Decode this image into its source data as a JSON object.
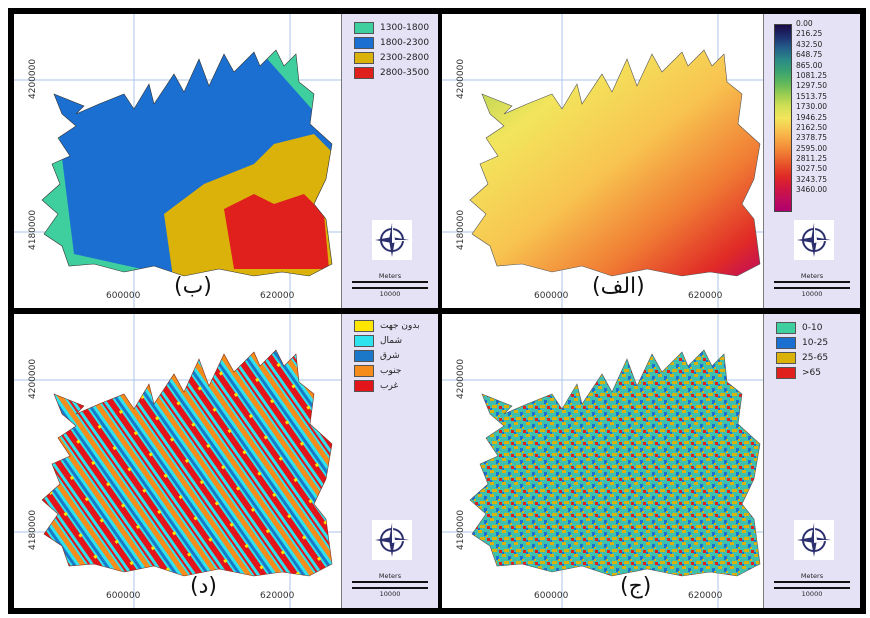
{
  "panels": {
    "alef": {
      "label": "(الف)",
      "ramp_labels": [
        "0.00",
        "216.25",
        "432.50",
        "648.75",
        "865.00",
        "1081.25",
        "1297.50",
        "1513.75",
        "1730.00",
        "1946.25",
        "2162.50",
        "2378.75",
        "2595.00",
        "2811.25",
        "3027.50",
        "3243.75",
        "3460.00"
      ],
      "ramp_colors": [
        "#1a0a46",
        "#1d2f70",
        "#245f8a",
        "#2a8a86",
        "#39a26f",
        "#60b85b",
        "#9ccd52",
        "#d2df55",
        "#f2e55c",
        "#f8c450",
        "#f6a040",
        "#f07c34",
        "#e8522a",
        "#e02a26",
        "#d11640",
        "#c00c5c",
        "#b0006e"
      ],
      "x_ticks": [
        "600000",
        "620000"
      ],
      "y_ticks": [
        "4200000",
        "4180000"
      ],
      "scale_title": "Meters",
      "scale_value": "10000"
    },
    "be": {
      "label": "(ب)",
      "legend": [
        {
          "label": "1300-1800",
          "color": "#3fcf9e"
        },
        {
          "label": "1800-2300",
          "color": "#1b6fd1"
        },
        {
          "label": "2300-2800",
          "color": "#dbb20a"
        },
        {
          "label": "2800-3500",
          "color": "#e0201c"
        }
      ],
      "x_ticks": [
        "600000",
        "620000"
      ],
      "y_ticks": [
        "4200000",
        "4180000"
      ],
      "scale_title": "Meters",
      "scale_value": "10000"
    },
    "jim": {
      "label": "(ج)",
      "legend": [
        {
          "label": "0-10",
          "color": "#3fcf9e"
        },
        {
          "label": "10-25",
          "color": "#1b6fd1"
        },
        {
          "label": "25-65",
          "color": "#dbb20a"
        },
        {
          "label": ">65",
          "color": "#e0201c"
        }
      ],
      "x_ticks": [
        "600000",
        "620000"
      ],
      "y_ticks": [
        "4200000",
        "4180000"
      ],
      "scale_title": "Meters",
      "scale_value": "10000"
    },
    "dal": {
      "label": "(د)",
      "legend": [
        {
          "label": "بدون جهت",
          "color": "#ffe600"
        },
        {
          "label": "شمال",
          "color": "#2ee3ee"
        },
        {
          "label": "شرق",
          "color": "#1b78c8"
        },
        {
          "label": "جنوب",
          "color": "#f48d1c"
        },
        {
          "label": "غرب",
          "color": "#e3151a"
        }
      ],
      "x_ticks": [
        "600000",
        "620000"
      ],
      "y_ticks": [
        "4200000",
        "4180000"
      ],
      "scale_title": "Meters",
      "scale_value": "10000"
    }
  }
}
